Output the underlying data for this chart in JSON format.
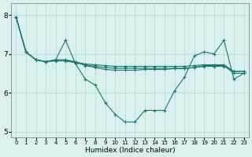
{
  "background_color": "#d9f0ee",
  "grid_color": "#aed8d3",
  "line_color": "#1a7a6e",
  "xlabel": "Humidex (Indice chaleur)",
  "xlim": [
    -0.5,
    23.5
  ],
  "ylim": [
    4.85,
    8.3
  ],
  "yticks": [
    5,
    6,
    7,
    8
  ],
  "xticks": [
    0,
    1,
    2,
    3,
    4,
    5,
    6,
    7,
    8,
    9,
    10,
    11,
    12,
    13,
    14,
    15,
    16,
    17,
    18,
    19,
    20,
    21,
    22,
    23
  ],
  "line1": [
    7.95,
    7.05,
    6.85,
    6.8,
    6.85,
    7.35,
    6.75,
    6.35,
    6.2,
    5.75,
    5.45,
    5.25,
    5.25,
    5.55,
    5.55,
    5.55,
    6.05,
    6.4,
    6.95,
    7.05,
    7.0,
    7.35,
    6.35,
    6.5
  ],
  "line2": [
    7.95,
    7.05,
    6.85,
    6.8,
    6.85,
    6.85,
    6.8,
    6.7,
    6.65,
    6.6,
    6.58,
    6.58,
    6.58,
    6.6,
    6.6,
    6.6,
    6.62,
    6.62,
    6.65,
    6.68,
    6.68,
    6.68,
    6.55,
    6.55
  ],
  "line3": [
    7.95,
    7.05,
    6.85,
    6.8,
    6.83,
    6.83,
    6.79,
    6.74,
    6.72,
    6.7,
    6.68,
    6.68,
    6.68,
    6.68,
    6.68,
    6.68,
    6.68,
    6.68,
    6.7,
    6.72,
    6.72,
    6.72,
    6.55,
    6.55
  ],
  "line4": [
    7.95,
    7.05,
    6.85,
    6.8,
    6.82,
    6.82,
    6.77,
    6.72,
    6.68,
    6.65,
    6.63,
    6.63,
    6.63,
    6.63,
    6.63,
    6.63,
    6.63,
    6.63,
    6.65,
    6.7,
    6.7,
    6.7,
    6.5,
    6.5
  ]
}
